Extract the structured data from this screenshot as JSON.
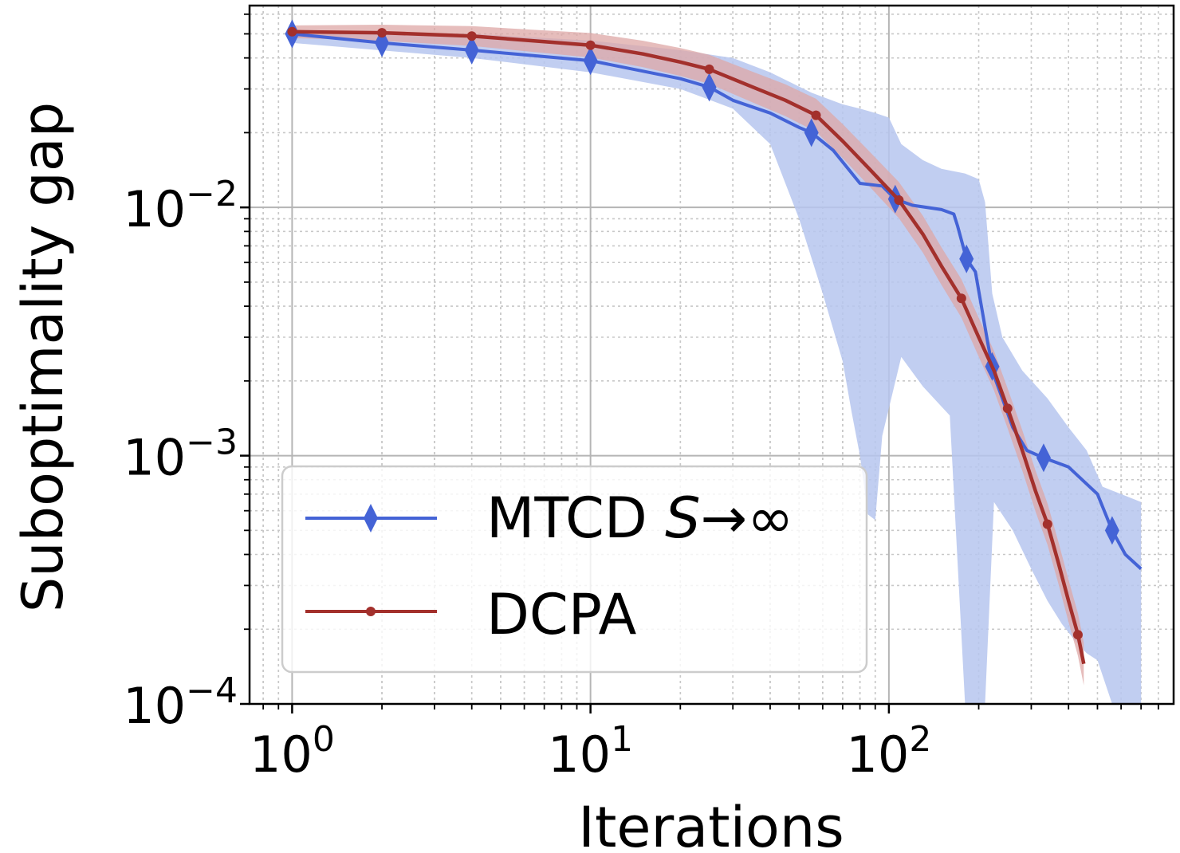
{
  "chart_data": {
    "type": "line",
    "title": "",
    "xlabel": "Iterations",
    "ylabel": "Suboptimality gap",
    "xscale": "log",
    "yscale": "log",
    "xlim": [
      0.72,
      900
    ],
    "ylim": [
      0.0001,
      0.065
    ],
    "grid": true,
    "legend_position": "lower-left",
    "x_ticks": [
      {
        "value": 1,
        "base": "10",
        "exp": "0"
      },
      {
        "value": 10,
        "base": "10",
        "exp": "1"
      },
      {
        "value": 100,
        "base": "10",
        "exp": "2"
      }
    ],
    "y_ticks": [
      {
        "value": 0.01,
        "base": "10",
        "exp": "−2"
      },
      {
        "value": 0.001,
        "base": "10",
        "exp": "−3"
      },
      {
        "value": 0.0001,
        "base": "10",
        "exp": "−4"
      }
    ],
    "series": [
      {
        "name": "MTCD",
        "legend_label": "MTCD ",
        "legend_label_italic": "S",
        "legend_label_suffix": "→∞",
        "color": "#4463d6",
        "band_color": "#b6c6ee",
        "marker": "diamond",
        "points": [
          [
            1,
            0.05
          ],
          [
            2,
            0.046
          ],
          [
            4,
            0.043
          ],
          [
            10,
            0.039
          ],
          [
            20,
            0.033
          ],
          [
            25,
            0.0305
          ],
          [
            30,
            0.027
          ],
          [
            40,
            0.024
          ],
          [
            50,
            0.021
          ],
          [
            55,
            0.02
          ],
          [
            65,
            0.017
          ],
          [
            80,
            0.0125
          ],
          [
            95,
            0.0122
          ],
          [
            105,
            0.0108
          ],
          [
            120,
            0.0102
          ],
          [
            150,
            0.0098
          ],
          [
            165,
            0.0094
          ],
          [
            170,
            0.0084
          ],
          [
            182,
            0.0062
          ],
          [
            195,
            0.0055
          ],
          [
            215,
            0.0028
          ],
          [
            225,
            0.0021
          ],
          [
            240,
            0.0017
          ],
          [
            260,
            0.0013
          ],
          [
            290,
            0.00105
          ],
          [
            330,
            0.00098
          ],
          [
            400,
            0.0009
          ],
          [
            500,
            0.0007
          ],
          [
            560,
            0.0005
          ],
          [
            620,
            0.0004
          ],
          [
            700,
            0.00035
          ]
        ],
        "markers_x": [
          1,
          2,
          4,
          10,
          25,
          55,
          105,
          182,
          222,
          330,
          560
        ],
        "band_upper": [
          [
            1,
            0.052
          ],
          [
            4,
            0.05
          ],
          [
            10,
            0.047
          ],
          [
            20,
            0.043
          ],
          [
            30,
            0.04
          ],
          [
            40,
            0.035
          ],
          [
            55,
            0.029
          ],
          [
            70,
            0.026
          ],
          [
            80,
            0.025
          ],
          [
            90,
            0.024
          ],
          [
            100,
            0.023
          ],
          [
            110,
            0.018
          ],
          [
            130,
            0.0155
          ],
          [
            150,
            0.0143
          ],
          [
            180,
            0.0137
          ],
          [
            200,
            0.013
          ],
          [
            210,
            0.0105
          ],
          [
            222,
            0.0045
          ],
          [
            240,
            0.003
          ],
          [
            280,
            0.0022
          ],
          [
            340,
            0.0017
          ],
          [
            400,
            0.0013
          ],
          [
            460,
            0.00105
          ],
          [
            520,
            0.00075
          ],
          [
            600,
            0.0007
          ],
          [
            700,
            0.00065
          ]
        ],
        "band_lower": [
          [
            1,
            0.046
          ],
          [
            4,
            0.04
          ],
          [
            10,
            0.035
          ],
          [
            20,
            0.03
          ],
          [
            30,
            0.025
          ],
          [
            40,
            0.018
          ],
          [
            50,
            0.009
          ],
          [
            60,
            0.0045
          ],
          [
            70,
            0.0024
          ],
          [
            75,
            0.0015
          ],
          [
            80,
            0.001
          ],
          [
            85,
            0.00058
          ],
          [
            90,
            0.00055
          ],
          [
            95,
            0.0012
          ],
          [
            110,
            0.0025
          ],
          [
            130,
            0.0019
          ],
          [
            160,
            0.00145
          ],
          [
            180,
            0.0001
          ],
          [
            200,
            0.0001
          ],
          [
            210,
            0.0001
          ],
          [
            225,
            0.00065
          ],
          [
            260,
            0.0005
          ],
          [
            300,
            0.00035
          ],
          [
            340,
            0.00026
          ],
          [
            380,
            0.00021
          ],
          [
            420,
            0.00018
          ],
          [
            460,
            0.00016
          ],
          [
            500,
            0.00015
          ],
          [
            560,
            0.0001
          ],
          [
            700,
            0.0001
          ]
        ]
      },
      {
        "name": "DCPA",
        "legend_label": "DCPA",
        "color": "#a3302c",
        "band_color": "#dda7a5",
        "marker": "circle",
        "points": [
          [
            1,
            0.051
          ],
          [
            2,
            0.0505
          ],
          [
            4,
            0.049
          ],
          [
            7,
            0.0465
          ],
          [
            10,
            0.045
          ],
          [
            15,
            0.0415
          ],
          [
            20,
            0.0385
          ],
          [
            25,
            0.036
          ],
          [
            35,
            0.0305
          ],
          [
            45,
            0.027
          ],
          [
            57,
            0.0235
          ],
          [
            70,
            0.0185
          ],
          [
            85,
            0.0145
          ],
          [
            100,
            0.0118
          ],
          [
            108,
            0.0107
          ],
          [
            130,
            0.0078
          ],
          [
            150,
            0.0058
          ],
          [
            175,
            0.0043
          ],
          [
            200,
            0.003
          ],
          [
            225,
            0.0022
          ],
          [
            250,
            0.00155
          ],
          [
            280,
            0.00105
          ],
          [
            310,
            0.00072
          ],
          [
            340,
            0.00053
          ],
          [
            370,
            0.00037
          ],
          [
            400,
            0.00026
          ],
          [
            430,
            0.00019
          ],
          [
            450,
            0.000145
          ]
        ],
        "markers_x": [
          1,
          2,
          4,
          10,
          25,
          57,
          108,
          175,
          250,
          340,
          430
        ]
      }
    ]
  }
}
